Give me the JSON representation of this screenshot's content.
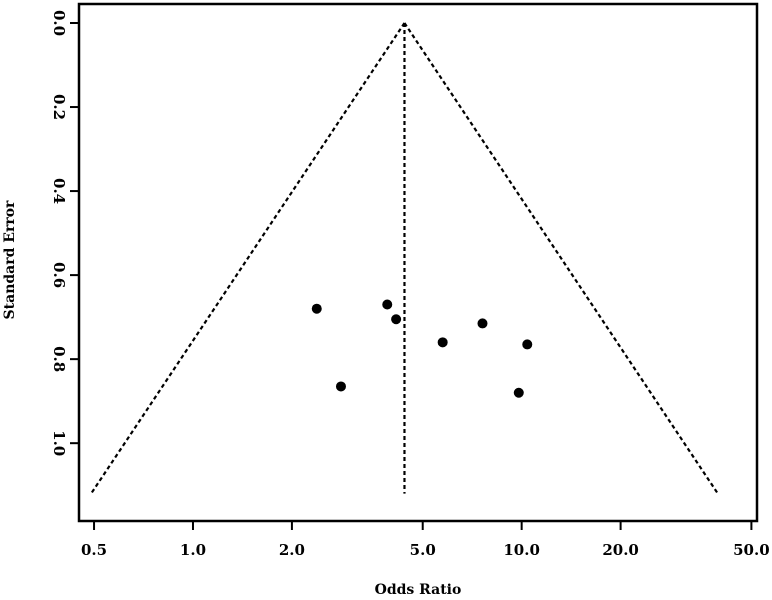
{
  "chart_data": {
    "type": "scatter",
    "title": "",
    "xlabel": "Odds Ratio",
    "ylabel": "Standard Error",
    "x_scale": "log",
    "y_inverted": true,
    "xlim": [
      0.45,
      52
    ],
    "ylim": [
      0.0,
      1.14
    ],
    "x_ticks": [
      0.5,
      1.0,
      2.0,
      5.0,
      10.0,
      20.0,
      50.0
    ],
    "x_tick_labels": [
      "0.5",
      "1.0",
      "2.0",
      "5.0",
      "10.0",
      "20.0",
      "50.0"
    ],
    "y_ticks": [
      0.0,
      0.2,
      0.4,
      0.6,
      0.8,
      1.0
    ],
    "y_tick_labels": [
      "0.0",
      "0.2",
      "0.4",
      "0.6",
      "0.8",
      "1.0"
    ],
    "grid": false,
    "pooled_or": 4.4,
    "funnel_se_max": 1.12,
    "points": [
      {
        "x": 2.38,
        "y": 0.68
      },
      {
        "x": 2.82,
        "y": 0.865
      },
      {
        "x": 3.9,
        "y": 0.67
      },
      {
        "x": 4.15,
        "y": 0.705
      },
      {
        "x": 5.75,
        "y": 0.76
      },
      {
        "x": 7.6,
        "y": 0.715
      },
      {
        "x": 9.8,
        "y": 0.88
      },
      {
        "x": 10.4,
        "y": 0.765
      }
    ],
    "colors": {
      "marker": "#000000",
      "lines": "#000000",
      "background": "#ffffff"
    }
  }
}
